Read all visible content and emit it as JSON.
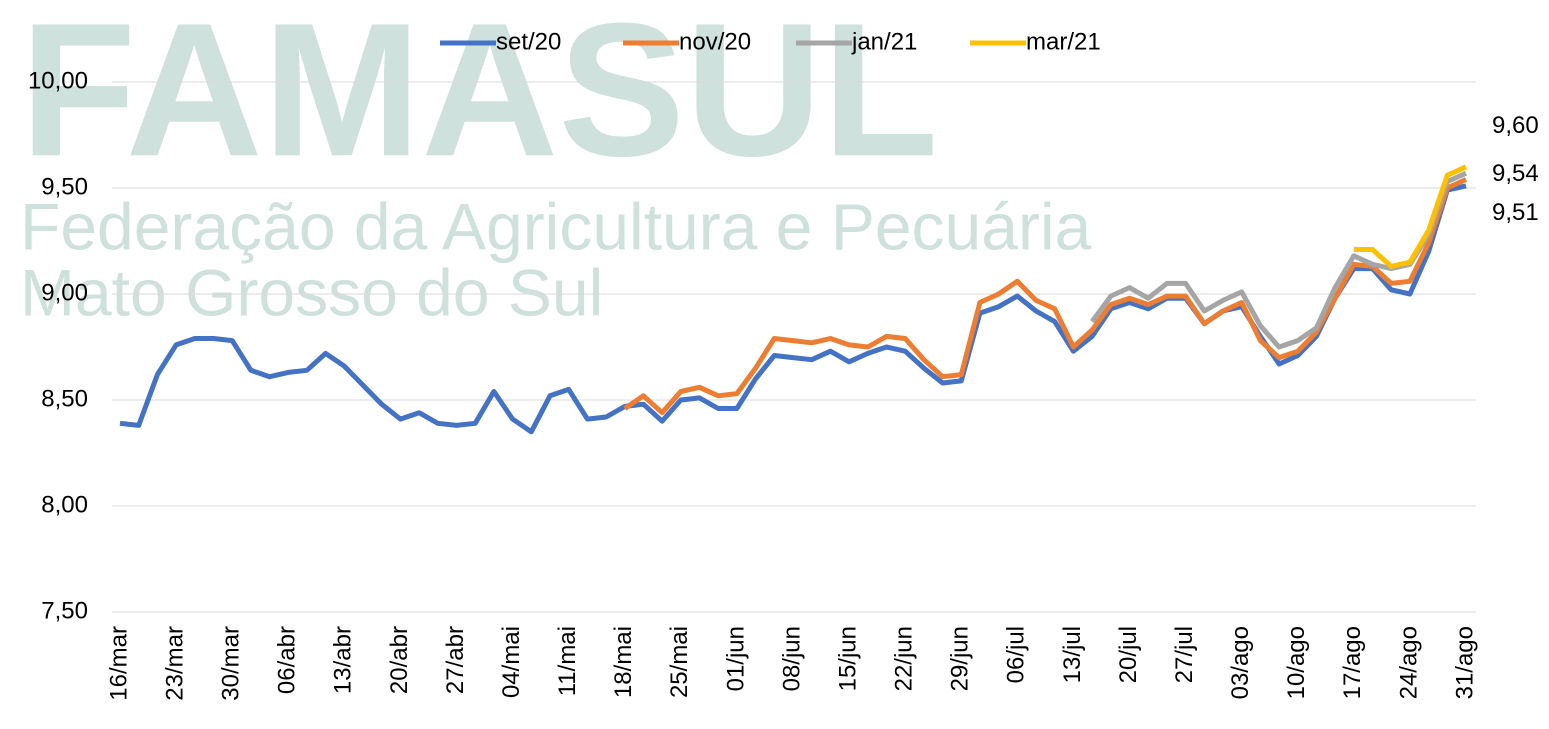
{
  "chart_data": {
    "type": "line",
    "watermark": {
      "title": "FAMASUL",
      "lines": [
        "Federação da Agricultura e Pecuária",
        "Mato Grosso do Sul"
      ]
    },
    "categories": [
      "16/mar",
      null,
      null,
      "23/mar",
      null,
      null,
      "30/mar",
      null,
      null,
      "06/abr",
      null,
      null,
      "13/abr",
      null,
      null,
      "20/abr",
      null,
      null,
      "27/abr",
      null,
      null,
      "04/mai",
      null,
      null,
      "11/mai",
      null,
      null,
      "18/mai",
      null,
      null,
      "25/mai",
      null,
      null,
      "01/jun",
      null,
      null,
      "08/jun",
      null,
      null,
      "15/jun",
      null,
      null,
      "22/jun",
      null,
      null,
      "29/jun",
      null,
      null,
      "06/jul",
      null,
      null,
      "13/jul",
      null,
      null,
      "20/jul",
      null,
      null,
      "27/jul",
      null,
      null,
      "03/ago",
      null,
      null,
      "10/ago",
      null,
      null,
      "17/ago",
      null,
      null,
      "24/ago",
      null,
      null,
      "31/ago"
    ],
    "series": [
      {
        "name": "set/20",
        "color": "#4472c4",
        "values": [
          8.39,
          8.38,
          8.62,
          8.76,
          8.79,
          8.79,
          8.78,
          8.64,
          8.61,
          8.63,
          8.64,
          8.72,
          8.66,
          8.57,
          8.48,
          8.41,
          8.44,
          8.39,
          8.38,
          8.39,
          8.54,
          8.41,
          8.35,
          8.52,
          8.55,
          8.41,
          8.42,
          8.47,
          8.48,
          8.4,
          8.5,
          8.51,
          8.46,
          8.46,
          8.6,
          8.71,
          8.7,
          8.69,
          8.73,
          8.68,
          8.72,
          8.75,
          8.73,
          8.65,
          8.58,
          8.59,
          8.91,
          8.94,
          8.99,
          8.92,
          8.87,
          8.73,
          8.8,
          8.93,
          8.96,
          8.93,
          8.98,
          8.98,
          8.86,
          8.92,
          8.94,
          8.8,
          8.67,
          8.71,
          8.8,
          8.98,
          9.12,
          9.12,
          9.02,
          9.0,
          9.2,
          9.49,
          9.51
        ],
        "value_labels": [
          null,
          null,
          null,
          null,
          null,
          null,
          null,
          null,
          null,
          null,
          null,
          null,
          null,
          null,
          null,
          null,
          null,
          null,
          null,
          null,
          null,
          null,
          null,
          null,
          null,
          null,
          null,
          null,
          null,
          null,
          null,
          null,
          null,
          null,
          null,
          null,
          null,
          null,
          null,
          null,
          null,
          null,
          null,
          null,
          null,
          null,
          null,
          null,
          null,
          null,
          null,
          null,
          null,
          null,
          null,
          null,
          null,
          null,
          null,
          null,
          null,
          null,
          null,
          null,
          null,
          null,
          null,
          null,
          null,
          null,
          null,
          null,
          "9,51"
        ]
      },
      {
        "name": "nov/20",
        "color": "#ed7d31",
        "values": [
          null,
          null,
          null,
          null,
          null,
          null,
          null,
          null,
          null,
          null,
          null,
          null,
          null,
          null,
          null,
          null,
          null,
          null,
          null,
          null,
          null,
          null,
          null,
          null,
          null,
          null,
          null,
          8.46,
          8.52,
          8.44,
          8.54,
          8.56,
          8.52,
          8.53,
          8.65,
          8.79,
          8.78,
          8.77,
          8.79,
          8.76,
          8.75,
          8.8,
          8.79,
          8.69,
          8.61,
          8.62,
          8.96,
          9.0,
          9.06,
          8.97,
          8.93,
          8.75,
          8.83,
          8.95,
          8.98,
          8.95,
          8.99,
          8.99,
          8.86,
          8.92,
          8.96,
          8.78,
          8.7,
          8.73,
          8.82,
          8.98,
          9.14,
          9.13,
          9.05,
          9.06,
          9.24,
          9.5,
          9.54
        ],
        "value_labels": [
          null,
          null,
          null,
          null,
          null,
          null,
          null,
          null,
          null,
          null,
          null,
          null,
          null,
          null,
          null,
          null,
          null,
          null,
          null,
          null,
          null,
          null,
          null,
          null,
          null,
          null,
          null,
          null,
          null,
          null,
          null,
          null,
          null,
          null,
          null,
          null,
          null,
          null,
          null,
          null,
          null,
          null,
          null,
          null,
          null,
          null,
          null,
          null,
          null,
          null,
          null,
          null,
          null,
          null,
          null,
          null,
          null,
          null,
          null,
          null,
          null,
          null,
          null,
          null,
          null,
          null,
          null,
          null,
          null,
          null,
          null,
          null,
          "9,54"
        ]
      },
      {
        "name": "jan/21",
        "color": "#a5a5a5",
        "values": [
          null,
          null,
          null,
          null,
          null,
          null,
          null,
          null,
          null,
          null,
          null,
          null,
          null,
          null,
          null,
          null,
          null,
          null,
          null,
          null,
          null,
          null,
          null,
          null,
          null,
          null,
          null,
          null,
          null,
          null,
          null,
          null,
          null,
          null,
          null,
          null,
          null,
          null,
          null,
          null,
          null,
          null,
          null,
          null,
          null,
          null,
          null,
          null,
          null,
          null,
          null,
          null,
          8.87,
          8.99,
          9.03,
          8.98,
          9.05,
          9.05,
          8.92,
          8.97,
          9.01,
          8.85,
          8.75,
          8.78,
          8.84,
          9.03,
          9.18,
          9.14,
          9.12,
          9.14,
          9.28,
          9.53,
          9.57
        ]
      },
      {
        "name": "mar/21",
        "color": "#ffc000",
        "values": [
          null,
          null,
          null,
          null,
          null,
          null,
          null,
          null,
          null,
          null,
          null,
          null,
          null,
          null,
          null,
          null,
          null,
          null,
          null,
          null,
          null,
          null,
          null,
          null,
          null,
          null,
          null,
          null,
          null,
          null,
          null,
          null,
          null,
          null,
          null,
          null,
          null,
          null,
          null,
          null,
          null,
          null,
          null,
          null,
          null,
          null,
          null,
          null,
          null,
          null,
          null,
          null,
          null,
          null,
          null,
          null,
          null,
          null,
          null,
          null,
          null,
          null,
          null,
          null,
          null,
          null,
          9.21,
          9.21,
          9.13,
          9.15,
          9.3,
          9.56,
          9.6
        ],
        "value_labels": [
          null,
          null,
          null,
          null,
          null,
          null,
          null,
          null,
          null,
          null,
          null,
          null,
          null,
          null,
          null,
          null,
          null,
          null,
          null,
          null,
          null,
          null,
          null,
          null,
          null,
          null,
          null,
          null,
          null,
          null,
          null,
          null,
          null,
          null,
          null,
          null,
          null,
          null,
          null,
          null,
          null,
          null,
          null,
          null,
          null,
          null,
          null,
          null,
          null,
          null,
          null,
          null,
          null,
          null,
          null,
          null,
          null,
          null,
          null,
          null,
          null,
          null,
          null,
          null,
          null,
          null,
          null,
          null,
          null,
          null,
          null,
          null,
          "9,60"
        ]
      }
    ],
    "ylim": [
      7.5,
      10
    ],
    "yticks": [
      {
        "value": 7.5,
        "label": "7,50"
      },
      {
        "value": 8,
        "label": "8,00"
      },
      {
        "value": 8.5,
        "label": "8,50"
      },
      {
        "value": 9,
        "label": "9,00"
      },
      {
        "value": 9.5,
        "label": "9,50"
      },
      {
        "value": 10,
        "label": "10,00"
      }
    ],
    "grid": true,
    "legend": "top"
  }
}
